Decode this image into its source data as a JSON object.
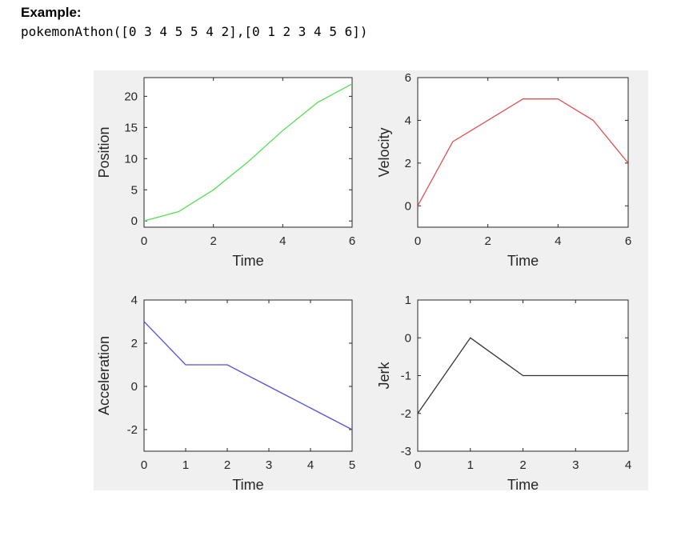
{
  "heading": "Example:",
  "code": "pokemonAthon([0 3 4 5 5 4 2],[0 1 2 3 4 5 6])",
  "chart_data": [
    {
      "type": "line",
      "xlabel": "Time",
      "ylabel": "Position",
      "x": [
        0,
        1,
        2,
        3,
        4,
        5,
        6
      ],
      "y": [
        0,
        1.5,
        5,
        9.5,
        14.5,
        19,
        22
      ],
      "xlim": [
        0,
        6
      ],
      "ylim": [
        -1,
        23
      ],
      "xticks": [
        0,
        2,
        4,
        6
      ],
      "yticks": [
        0,
        5,
        10,
        15,
        20
      ],
      "color": "#55e055",
      "grid": false
    },
    {
      "type": "line",
      "xlabel": "Time",
      "ylabel": "Velocity",
      "x": [
        0,
        1,
        2,
        3,
        4,
        5,
        6
      ],
      "y": [
        0,
        3,
        4,
        5,
        5,
        4,
        2
      ],
      "xlim": [
        0,
        6
      ],
      "ylim": [
        -1,
        6
      ],
      "xticks": [
        0,
        2,
        4,
        6
      ],
      "yticks": [
        0,
        2,
        4,
        6
      ],
      "color": "#e05252",
      "grid": false
    },
    {
      "type": "line",
      "xlabel": "Time",
      "ylabel": "Acceleration",
      "x": [
        0,
        1,
        2,
        3,
        4,
        5
      ],
      "y": [
        3,
        1,
        1,
        0,
        -1,
        -2
      ],
      "xlim": [
        0,
        5
      ],
      "ylim": [
        -3,
        4
      ],
      "xticks": [
        0,
        1,
        2,
        3,
        4,
        5
      ],
      "yticks": [
        -2,
        0,
        2,
        4
      ],
      "color": "#5252e0",
      "grid": false
    },
    {
      "type": "line",
      "xlabel": "Time",
      "ylabel": "Jerk",
      "x": [
        0,
        1,
        2,
        3,
        4
      ],
      "y": [
        -2,
        0,
        -1,
        -1,
        -1
      ],
      "xlim": [
        0,
        4
      ],
      "ylim": [
        -3,
        1
      ],
      "xticks": [
        0,
        1,
        2,
        3,
        4
      ],
      "yticks": [
        -3,
        -2,
        -1,
        0,
        1
      ],
      "color": "#333333",
      "grid": false
    }
  ]
}
